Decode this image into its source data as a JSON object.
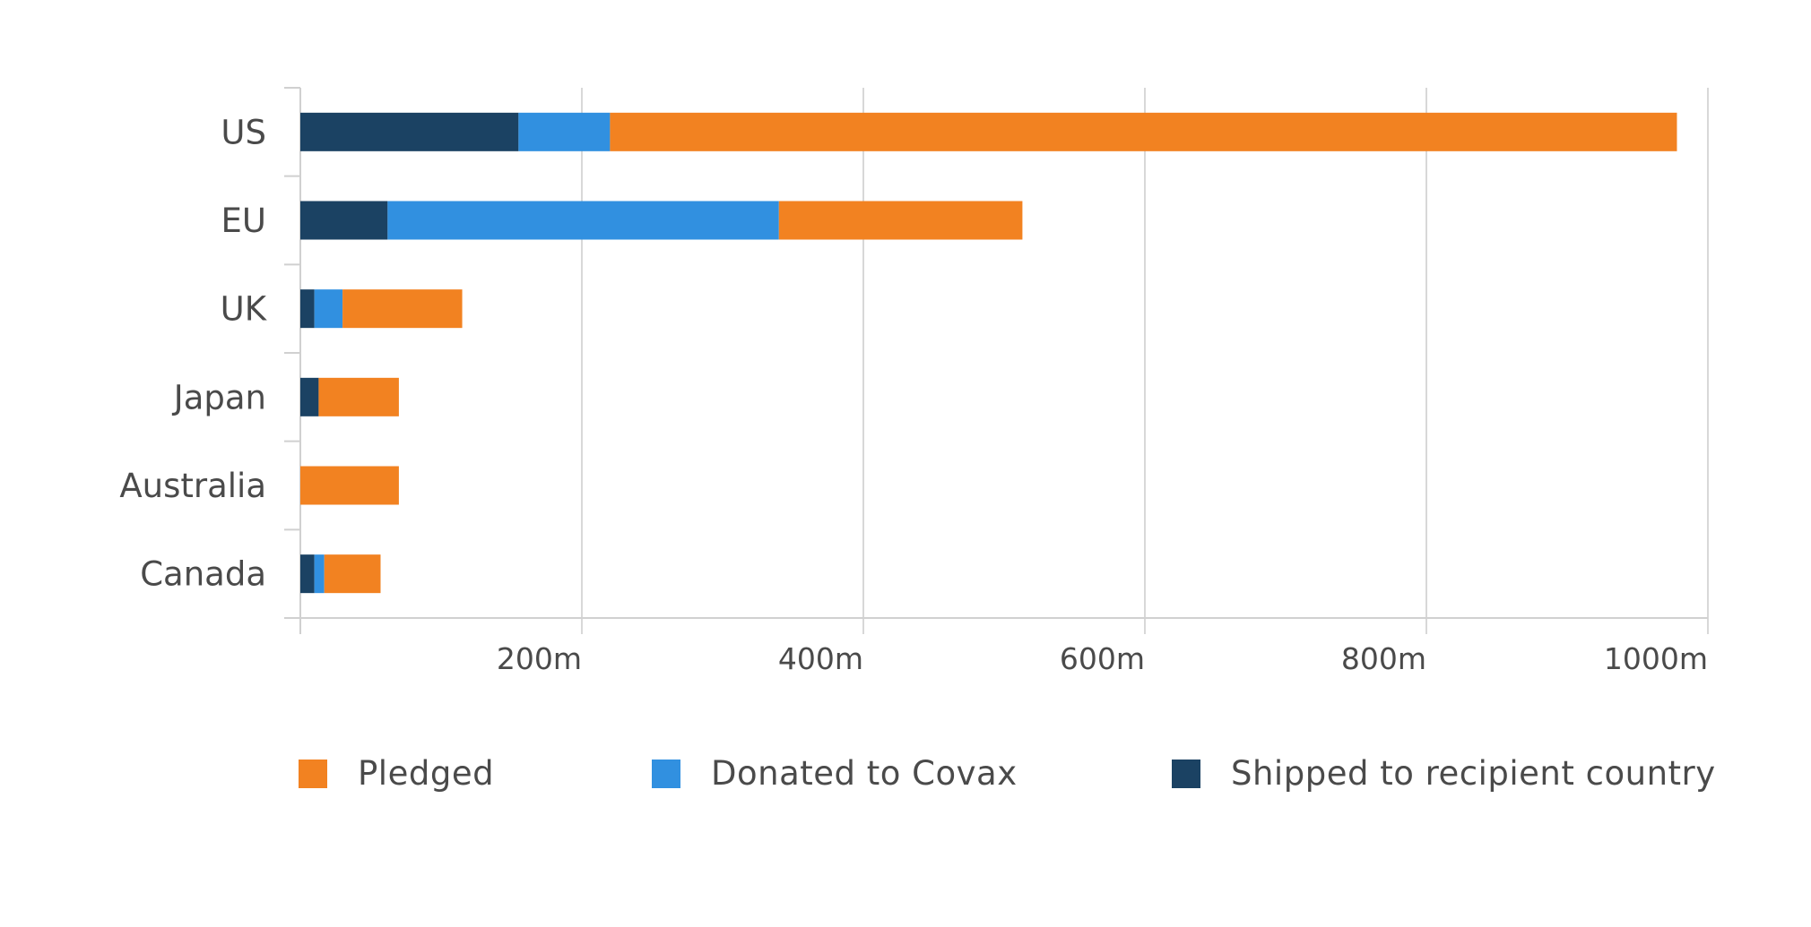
{
  "chart_data": {
    "type": "bar",
    "orientation": "horizontal",
    "stacked": true,
    "categories": [
      "US",
      "EU",
      "UK",
      "Japan",
      "Australia",
      "Canada"
    ],
    "series": [
      {
        "name": "Shipped to recipient country",
        "color": "#1b4263",
        "values": [
          155,
          62,
          10,
          13,
          0,
          10
        ]
      },
      {
        "name": "Donated to Covax",
        "color": "#3190e0",
        "values": [
          65,
          278,
          20,
          0,
          0,
          7
        ]
      },
      {
        "name": "Pledged",
        "color": "#f28221",
        "values": [
          758,
          173,
          85,
          57,
          70,
          40
        ]
      }
    ],
    "xlim": [
      0,
      1000
    ],
    "xticks": [
      200,
      400,
      600,
      800,
      1000
    ],
    "xtick_labels": [
      "200m",
      "400m",
      "600m",
      "800m",
      "1000m"
    ],
    "grid": "vertical",
    "legend_position": "bottom",
    "legend_order": [
      "Pledged",
      "Donated to Covax",
      "Shipped to recipient country"
    ],
    "xlabel": "",
    "ylabel": ""
  }
}
